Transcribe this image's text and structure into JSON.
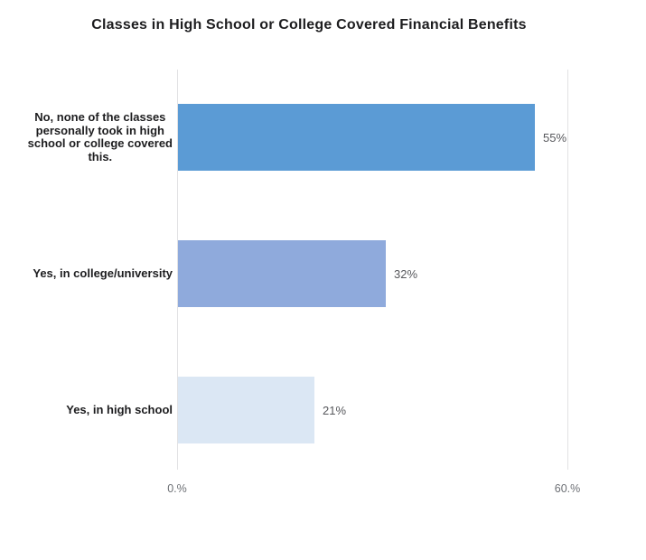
{
  "title": "Classes in High School or College Covered Financial Benefits",
  "chart_data": {
    "type": "bar",
    "orientation": "horizontal",
    "title": "Classes in High School or College Covered Financial Benefits",
    "categories": [
      "No, none of the classes personally took in high school or college covered this.",
      "Yes, in college/university",
      "Yes, in high school"
    ],
    "category_lines": [
      [
        "No, none of the classes",
        "personally took in high",
        "school or college covered",
        "this."
      ],
      [
        "Yes, in college/university"
      ],
      [
        "Yes, in high school"
      ]
    ],
    "values": [
      55,
      32,
      21
    ],
    "value_labels": [
      "55%",
      "32%",
      "21%"
    ],
    "bar_colors": [
      "#5b9bd5",
      "#8faadc",
      "#dbe7f4"
    ],
    "xlim": [
      0,
      60
    ],
    "x_ticks": [
      {
        "value": 0,
        "label": "0.%"
      },
      {
        "value": 60,
        "label": "60.%"
      }
    ],
    "legend": "none",
    "grid": "vertical gridlines at 0% and 60%",
    "background": "#ffffff"
  },
  "colors": {
    "title_text": "#1d1d1f",
    "category_text": "#1d1d1f",
    "value_text": "#57585c",
    "tick_text": "#6d7075",
    "gridline": "#e2e2e4"
  }
}
